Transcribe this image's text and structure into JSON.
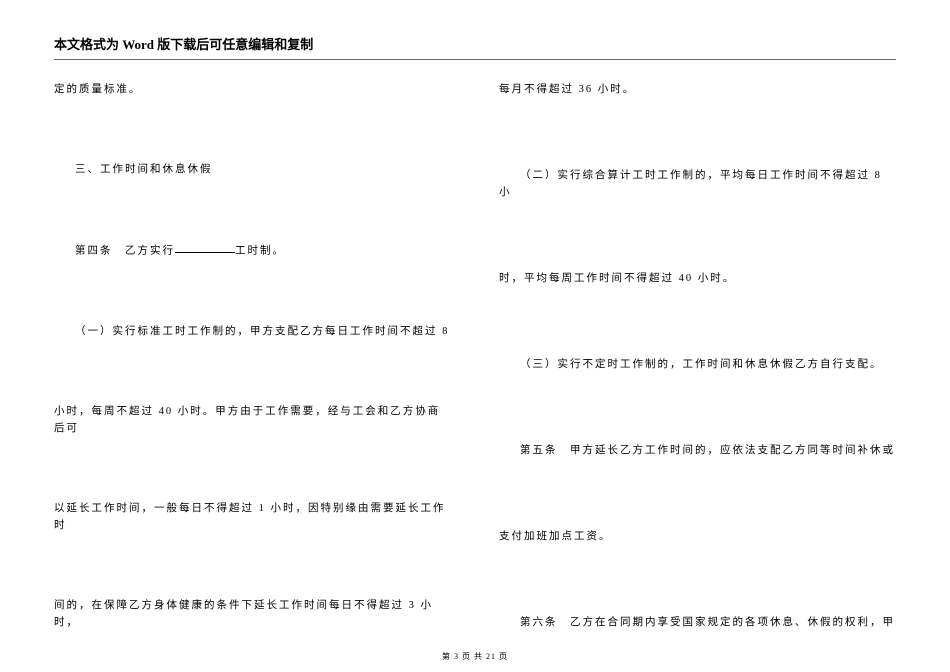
{
  "header": {
    "text": "本文格式为 Word 版下载后可任意编辑和复制"
  },
  "left_column": {
    "p1": "定的质量标准。",
    "p2": "三、工作时间和休息休假",
    "p3_a": "第四条　乙方实行",
    "p3_b": "工时制。",
    "p4": "（一）实行标准工时工作制的，甲方支配乙方每日工作时间不超过 8",
    "p5": "小时，每周不超过 40 小时。甲方由于工作需要，经与工会和乙方协商后可",
    "p6": "以延长工作时间，一般每日不得超过 1 小时，因特别缘由需要延长工作时",
    "p7": "间的，在保障乙方身体健康的条件下延长工作时间每日不得超过 3 小时，"
  },
  "right_column": {
    "p1": "每月不得超过 36 小时。",
    "p2": "（二）实行综合算计工时工作制的，平均每日工作时间不得超过 8 小",
    "p3": "时，平均每周工作时间不得超过 40 小时。",
    "p4": "（三）实行不定时工作制的，工作时间和休息休假乙方自行支配。",
    "p5": "第五条　甲方延长乙方工作时间的，应依法支配乙方同等时间补休或",
    "p6": "支付加班加点工资。",
    "p7": "第六条　乙方在合同期内享受国家规定的各项休息、休假的权利，甲"
  },
  "footer": {
    "text": "第 3 页 共 21 页"
  }
}
